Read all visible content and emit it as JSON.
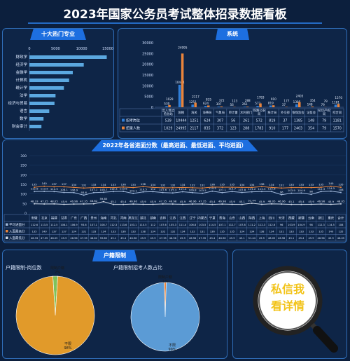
{
  "page": {
    "title": "2023年国家公务员考试整体招录数据看板"
  },
  "panels": {
    "top_majors": "十大热门专业",
    "system": "系统",
    "province_scores": "2022年各省进面分数（最高进面、最低进面、平均进面）",
    "household": "户籍限制",
    "promo": {
      "line1": "私信我",
      "line2": "看详情"
    }
  },
  "chart_data": [
    {
      "type": "bar",
      "orientation": "horizontal",
      "categories": [
        "财政学",
        "经济学",
        "金融学",
        "计算机",
        "统计学",
        "法学",
        "经济与贸易",
        "语言",
        "数学",
        "财会审计"
      ],
      "values": [
        14800,
        10400,
        8300,
        7600,
        6600,
        5000,
        4800,
        3800,
        2700,
        2300
      ],
      "xticks": [
        "0",
        "5000",
        "10000",
        "15000"
      ],
      "xlim": [
        0,
        15000
      ],
      "color": "#5ba8e0"
    },
    {
      "type": "bar",
      "categories": [
        "出入境边检总站",
        "国税",
        "海关",
        "海事局",
        "气象局",
        "审计署",
        "水利部门",
        "铁路公安局",
        "统计局",
        "外交部",
        "银保监会",
        "证监会",
        "知识产权局",
        "综合岗"
      ],
      "series": [
        {
          "name": "招考岗位",
          "values": [
            539,
            10444,
            1251,
            624,
            307,
            56,
            261,
            572,
            819,
            37,
            1385,
            148,
            79,
            1181
          ],
          "color": "#2f7ed8"
        },
        {
          "name": "招录人数",
          "values": [
            1029,
            24995,
            2117,
            835,
            372,
            123,
            288,
            1783,
            910,
            177,
            2403,
            354,
            79,
            1570
          ],
          "color": "#e8843c"
        }
      ],
      "bar_labels_1": [
        "539",
        "10444",
        "1251",
        "624",
        "307",
        "56",
        "261",
        "572",
        "819",
        "37",
        "1385",
        "148",
        "79",
        "1181"
      ],
      "bar_labels_2": [
        "1029",
        "24995",
        "2117",
        "835",
        "372",
        "123",
        "288",
        "1783",
        "910",
        "177",
        "2403",
        "354",
        "79",
        "1570"
      ],
      "yticks": [
        "0",
        "5000",
        "10000",
        "15000",
        "20000",
        "25000",
        "30000"
      ],
      "ylim": [
        0,
        30000
      ]
    },
    {
      "type": "line",
      "categories": [
        "安徽",
        "北京",
        "福建",
        "甘肃",
        "广东",
        "广西",
        "贵州",
        "海南",
        "河北",
        "河南",
        "黑龙江",
        "湖北",
        "湖南",
        "吉林",
        "江苏",
        "江西",
        "辽宁",
        "内蒙古",
        "宁夏",
        "青海",
        "山东",
        "山西",
        "陕西",
        "上海",
        "四川",
        "天津",
        "西藏",
        "新疆",
        "云南",
        "浙江",
        "重庆",
        "合计"
      ],
      "series": [
        {
          "name": "平均进面分",
          "color": "#9fb6d8",
          "values": [
            112.6,
            113.5,
            112.5,
            108.1,
            106.9,
            93.6,
            107.1,
            108.7,
            112.3,
            113.6,
            103.1,
            110.5,
            112.0,
            107.6,
            105.3,
            111.4,
            106.8,
            103.5,
            114.5,
            107.1,
            112.7,
            107.8,
            111.2,
            112.3,
            112.6,
            96.0,
            103.9,
            104.9,
            98.0,
            112.3,
            114.5,
            108.0
          ]
        },
        {
          "name": "入面最高分",
          "color": "#e8843c",
          "values": [
            135,
            140,
            137,
            137,
            134,
            131,
            133,
            134,
            133,
            136,
            133,
            138,
            134,
            132,
            132,
            134,
            132,
            131,
            136,
            135,
            135,
            134,
            134,
            138,
            134,
            131,
            133,
            133,
            133,
            135,
            140,
            135
          ]
        },
        {
          "name": "入面最低分",
          "color": "#cfd8e6",
          "values": [
            48.33,
            47.35,
            48.05,
            45.9,
            46.96,
            47.35,
            48.62,
            59.85,
            45.1,
            45.4,
            46.96,
            45.9,
            45.9,
            47.35,
            46.96,
            45.9,
            46.96,
            47.35,
            45.4,
            46.96,
            45.9,
            45.1,
            51.44,
            45.9,
            48.05,
            46.96,
            45.1,
            45.4,
            45.9,
            46.96,
            45.9,
            48.05
          ]
        }
      ],
      "yticks": [
        "0",
        "50",
        "100",
        "150",
        "200",
        "250",
        "300"
      ],
      "ylim": [
        0,
        300
      ]
    },
    {
      "type": "pie",
      "title": "户籍限制-岗位数",
      "labels": [
        "限制户籍",
        "不限"
      ],
      "values": [
        2,
        98
      ],
      "label_texts": [
        "2%",
        "98%"
      ],
      "colors": [
        "#7fc25a",
        "#e19a2a"
      ]
    },
    {
      "type": "pie",
      "title": "户籍限制招考人数占比",
      "labels": [
        "限制户籍",
        "不限"
      ],
      "values": [
        1,
        99
      ],
      "label_texts": [
        "1%",
        "99%"
      ],
      "colors": [
        "#e8843c",
        "#5b9bd5"
      ]
    }
  ]
}
